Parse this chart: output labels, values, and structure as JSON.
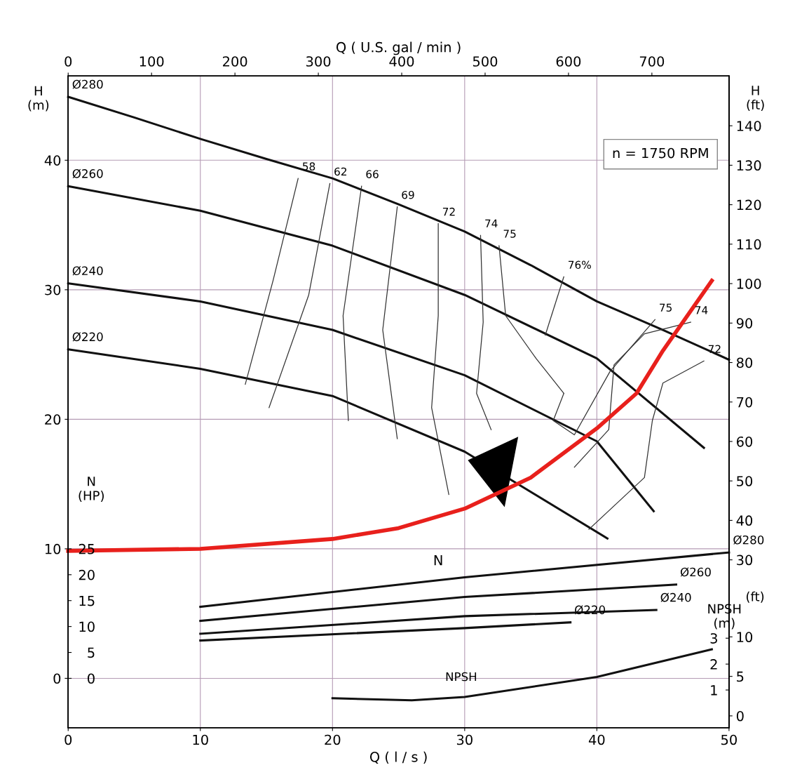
{
  "chart_data": [
    {
      "type": "line",
      "xlabel": "Q ( l / s )",
      "x2label": "Q ( U.S. gal / min )",
      "ylabel": "H\n(m)",
      "y2label": "H\n(ft)",
      "xlim": [
        0,
        50
      ],
      "xticks": [
        0,
        10,
        20,
        30,
        40,
        50
      ],
      "x2lim": [
        0,
        792.5
      ],
      "x2ticks": [
        0,
        100,
        200,
        300,
        400,
        500,
        600,
        700
      ],
      "ylim": [
        -3.8,
        46.5
      ],
      "yticks": [
        0,
        10,
        20,
        30,
        40
      ],
      "y2lim": [
        -12.5,
        152.6
      ],
      "y2ticks": [
        30,
        40,
        50,
        60,
        70,
        80,
        90,
        100,
        110,
        120,
        130,
        140
      ],
      "grid": true,
      "marker": "none",
      "line_style": "solid",
      "annotations": [
        "n = 1750 RPM"
      ],
      "series": [
        {
          "name": "Ø280",
          "color": "#111111",
          "x": [
            50,
            45,
            40,
            35,
            30,
            25,
            20,
            15,
            10,
            5,
            0
          ],
          "values": [
            24.6,
            26.9,
            29.1,
            31.9,
            34.5,
            36.6,
            38.6,
            40.1,
            41.65,
            43.3,
            44.9
          ]
        },
        {
          "name": "Ø260",
          "color": "#111111",
          "x": [
            48.1,
            40,
            30,
            20,
            10,
            0
          ],
          "values": [
            17.8,
            24.7,
            29.6,
            33.4,
            36.1,
            38.0
          ]
        },
        {
          "name": "Ø240",
          "color": "#111111",
          "x": [
            44.3,
            40,
            30,
            20,
            10,
            0
          ],
          "values": [
            12.9,
            18.3,
            23.4,
            26.9,
            29.1,
            30.5
          ]
        },
        {
          "name": "Ø220",
          "color": "#111111",
          "x": [
            40.8,
            30,
            20,
            10,
            0
          ],
          "values": [
            10.8,
            17.5,
            21.8,
            23.9,
            25.4
          ]
        },
        {
          "name": "58",
          "color": "#333333",
          "x": [
            13.4,
            15.5,
            17.4
          ],
          "values": [
            22.7,
            30.7,
            38.6
          ]
        },
        {
          "name": "62",
          "color": "#333333",
          "x": [
            15.2,
            18.2,
            19.8
          ],
          "values": [
            20.9,
            29.6,
            38.2
          ]
        },
        {
          "name": "66",
          "color": "#333333",
          "x": [
            21.2,
            20.8,
            22.2
          ],
          "values": [
            19.9,
            28.0,
            38.0
          ]
        },
        {
          "name": "69",
          "color": "#333333",
          "x": [
            24.9,
            23.8,
            24.9
          ],
          "values": [
            18.5,
            26.9,
            36.4
          ]
        },
        {
          "name": "72",
          "color": "#333333",
          "x": [
            28.8,
            27.5,
            28.0,
            28.0
          ],
          "values": [
            14.2,
            20.9,
            28.0,
            35.1
          ]
        },
        {
          "name": "74",
          "color": "#333333",
          "x": [
            32.0,
            30.9,
            31.4,
            31.2
          ],
          "values": [
            19.2,
            22.0,
            27.5,
            34.2
          ]
        },
        {
          "name": "75",
          "color": "#333333",
          "x": [
            37.5,
            35.4,
            33.1,
            32.6
          ],
          "values": [
            22.0,
            24.7,
            28.0,
            33.4
          ]
        },
        {
          "name": "76%",
          "color": "#333333",
          "x": [
            36.1,
            37.5
          ],
          "values": [
            26.5,
            31.0
          ]
        },
        {
          "name": "75",
          "color": "#333333",
          "x": [
            37.5,
            36.7,
            38.3,
            41.0,
            44.4
          ],
          "values": [
            22.0,
            19.9,
            18.8,
            23.7,
            27.7
          ]
        },
        {
          "name": "74",
          "color": "#333333",
          "x": [
            38.3,
            40.9,
            41.3,
            43.6,
            47.1
          ],
          "values": [
            16.3,
            19.2,
            24.2,
            26.6,
            27.5
          ]
        },
        {
          "name": "72",
          "color": "#333333",
          "x": [
            39.4,
            43.6,
            44.2,
            45.0,
            48.1
          ],
          "values": [
            11.5,
            15.5,
            19.9,
            22.8,
            24.5
          ]
        },
        {
          "color": "#e8201c",
          "x": [
            0,
            10,
            20,
            25,
            30,
            35,
            40,
            43,
            45,
            48.7
          ],
          "values": [
            9.84,
            10.0,
            10.76,
            11.6,
            13.1,
            15.5,
            19.3,
            22.0,
            25.3,
            30.7
          ]
        }
      ]
    },
    {
      "type": "line",
      "ylabel": "N\n(HP)",
      "xlim": [
        0,
        50
      ],
      "ylim": [
        -9.5,
        116.25
      ],
      "yticks": [
        0,
        5,
        10,
        15,
        20,
        25
      ],
      "tick_labels": "y",
      "marker": "none",
      "line_style": "solid",
      "annotations": [
        "N"
      ],
      "series": [
        {
          "name": "Ø280",
          "color": "#111111",
          "x": [
            10,
            30,
            50
          ],
          "values": [
            13.8,
            19.5,
            24.3
          ]
        },
        {
          "name": "Ø260",
          "color": "#111111",
          "x": [
            10,
            30,
            46
          ],
          "values": [
            11.1,
            15.7,
            18.1
          ]
        },
        {
          "name": "Ø240",
          "color": "#111111",
          "x": [
            10,
            30,
            44.5
          ],
          "values": [
            8.6,
            12.0,
            13.2
          ]
        },
        {
          "name": "Ø220",
          "color": "#111111",
          "x": [
            10,
            30,
            38
          ],
          "values": [
            7.3,
            9.7,
            10.8
          ]
        }
      ]
    },
    {
      "type": "line",
      "ylabel": "NPSH\n(m)",
      "y2label": "(ft)",
      "xlim": [
        0,
        50
      ],
      "ylim": [
        -0.45,
        24.7
      ],
      "yticks": [
        1,
        2,
        3
      ],
      "y2lim": [
        -1.48,
        81.0
      ],
      "y2ticks": [
        0,
        5,
        10
      ],
      "tick_labels": "y",
      "marker": "none",
      "line_style": "solid",
      "series": [
        {
          "name": "NPSH",
          "color": "#111111",
          "x": [
            20,
            26,
            30,
            40,
            48.7
          ],
          "values": [
            0.68,
            0.6,
            0.73,
            1.5,
            2.57
          ]
        }
      ]
    }
  ]
}
